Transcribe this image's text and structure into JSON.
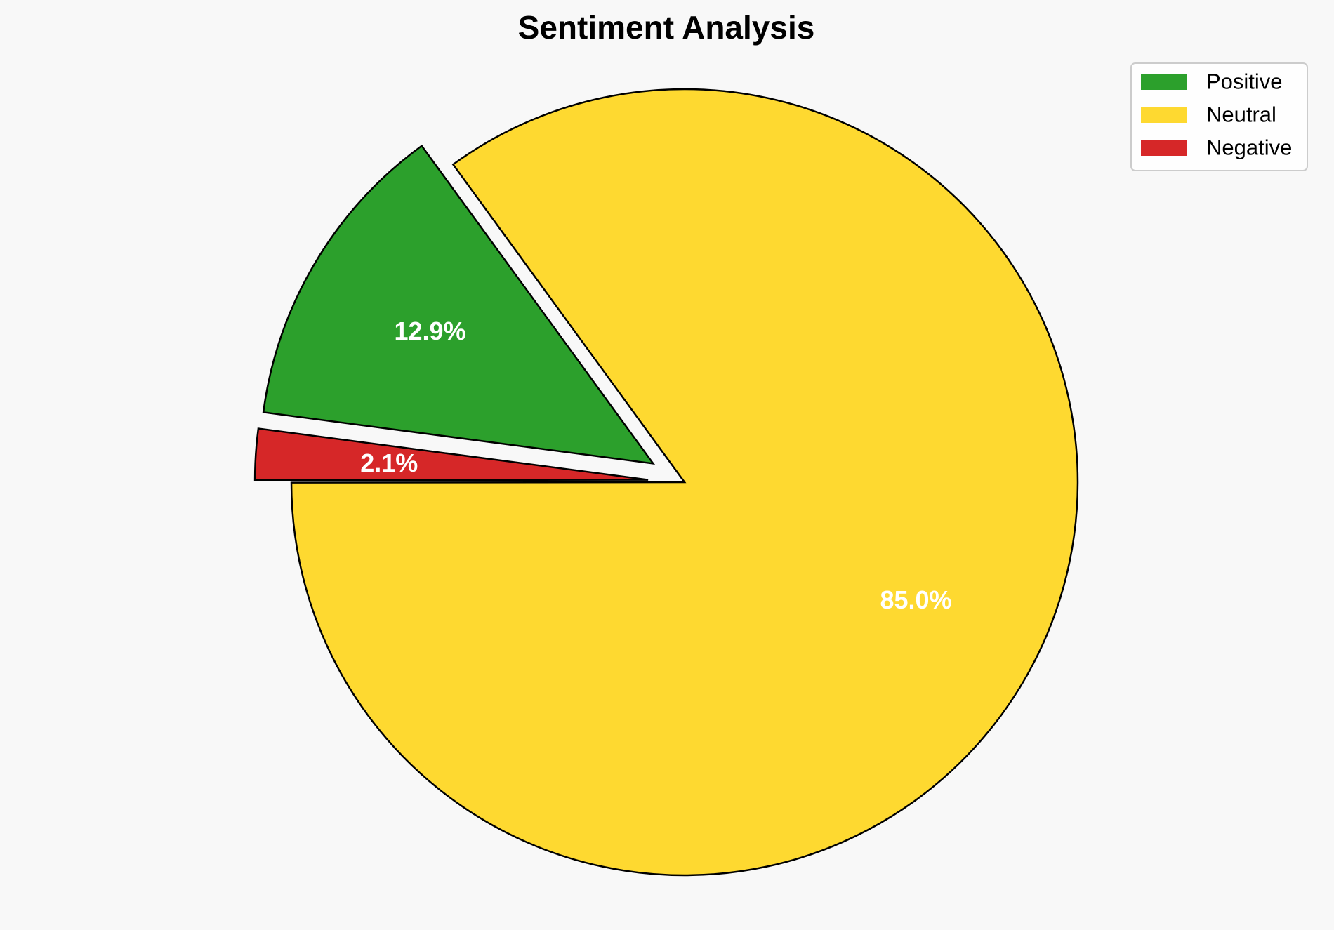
{
  "chart_data": {
    "type": "pie",
    "title": "Sentiment Analysis",
    "categories": [
      "Positive",
      "Neutral",
      "Negative"
    ],
    "values": [
      12.9,
      85.0,
      2.1
    ],
    "labels": [
      "12.9%",
      "85.0%",
      "2.1%"
    ],
    "colors": [
      "#2ca02c",
      "#fed930",
      "#d62728"
    ],
    "exploded": [
      true,
      false,
      true
    ],
    "start_angle_deg": 172.5,
    "direction": "clockwise",
    "legend_placement": "top-right",
    "edge_color": "#000000"
  }
}
